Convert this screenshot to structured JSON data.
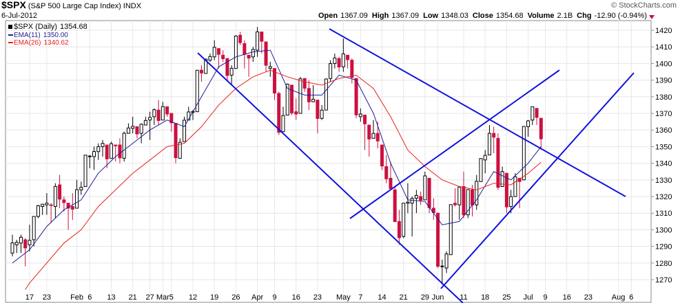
{
  "chart_data": {
    "type": "candlestick",
    "title": "$SPX",
    "subtitle": "(S&P 500 Large Cap Index) INDX",
    "date": "6-Jul-2012",
    "credit": "© StockCharts.com",
    "quote": [
      {
        "label": "Open",
        "value": 1367.09
      },
      {
        "label": "High",
        "value": 1367.09
      },
      {
        "label": "Low",
        "value": 1348.03
      },
      {
        "label": "Close",
        "value": 1354.68
      },
      {
        "label": "Volume",
        "value": "2.1B"
      },
      {
        "label": "Chg",
        "value": "-12.90 (-0.94%)"
      }
    ],
    "name": "$SPX (Daily)",
    "last_label": "1354.68",
    "up_color": "#000000",
    "down_color": "#cc1040",
    "x": [
      0,
      1,
      2,
      3,
      4,
      5,
      6,
      7,
      8,
      9,
      10,
      11,
      12,
      13,
      14,
      15,
      16,
      17,
      18,
      19,
      20,
      21,
      22,
      23,
      24,
      25,
      26,
      27,
      28,
      29,
      30,
      31,
      32,
      33,
      34,
      35,
      36,
      37,
      38,
      39,
      40,
      41,
      42,
      43,
      44,
      45,
      46,
      47,
      48,
      49,
      50,
      51,
      52,
      53,
      54,
      55,
      56,
      57,
      58,
      59,
      60,
      61,
      62,
      63,
      64,
      65,
      66,
      67,
      68,
      69,
      70,
      71,
      72,
      73,
      74,
      75,
      76,
      77,
      78,
      79,
      80,
      81,
      82,
      83,
      84,
      85,
      86,
      87,
      88,
      89,
      90,
      91,
      92,
      93,
      94,
      95,
      96,
      97,
      98,
      99,
      100,
      101,
      102,
      103,
      104,
      105,
      106,
      107,
      108,
      109,
      110,
      111,
      112,
      113,
      114,
      115,
      116,
      117,
      118,
      119,
      120,
      121,
      122,
      123
    ],
    "open": [
      1286,
      1291,
      1292,
      1294,
      1291,
      1294,
      1308,
      1314,
      1315,
      1315,
      1314,
      1327,
      1318,
      1316,
      1314,
      1313,
      1324,
      1326,
      1344,
      1344,
      1347,
      1350,
      1351,
      1343,
      1351,
      1351,
      1343,
      1358,
      1361,
      1362,
      1358,
      1363,
      1366,
      1368,
      1372,
      1366,
      1374,
      1370,
      1364,
      1343,
      1353,
      1366,
      1371,
      1371,
      1396,
      1394,
      1402,
      1404,
      1409,
      1405,
      1403,
      1393,
      1397,
      1417,
      1412,
      1405,
      1404,
      1408,
      1419,
      1413,
      1397,
      1397,
      1382,
      1359,
      1369,
      1387,
      1371,
      1370,
      1391,
      1385,
      1377,
      1378,
      1367,
      1372,
      1391,
      1400,
      1403,
      1398,
      1405,
      1402,
      1391,
      1368,
      1369,
      1363,
      1355,
      1358,
      1351,
      1338,
      1331,
      1324,
      1305,
      1296,
      1316,
      1316,
      1319,
      1320,
      1318,
      1331,
      1313,
      1310,
      1278,
      1277,
      1285,
      1316,
      1315,
      1326,
      1309,
      1324,
      1315,
      1329,
      1342,
      1345,
      1358,
      1355,
      1326,
      1334,
      1314,
      1320,
      1331,
      1330,
      1362,
      1366,
      1373,
      1367.09
    ],
    "high": [
      1297,
      1294,
      1297,
      1295,
      1303,
      1308,
      1315,
      1315,
      1322,
      1316,
      1328,
      1333,
      1320,
      1316,
      1322,
      1330,
      1329,
      1345,
      1345,
      1350,
      1352,
      1354,
      1351,
      1353,
      1351,
      1355,
      1359,
      1364,
      1368,
      1362,
      1364,
      1368,
      1371,
      1373,
      1378,
      1377,
      1374,
      1370,
      1364,
      1355,
      1368,
      1374,
      1372,
      1396,
      1399,
      1403,
      1406,
      1414,
      1409,
      1408,
      1403,
      1399,
      1417,
      1419,
      1414,
      1405,
      1410,
      1422,
      1419,
      1413,
      1401,
      1397,
      1383,
      1374,
      1388,
      1387,
      1379,
      1392,
      1391,
      1390,
      1387,
      1378,
      1375,
      1391,
      1402,
      1406,
      1404,
      1415,
      1405,
      1403,
      1391,
      1373,
      1369,
      1363,
      1366,
      1365,
      1351,
      1345,
      1341,
      1326,
      1312,
      1316,
      1328,
      1320,
      1324,
      1323,
      1335,
      1331,
      1319,
      1310,
      1282,
      1287,
      1315,
      1325,
      1326,
      1335,
      1324,
      1327,
      1333,
      1343,
      1348,
      1363,
      1362,
      1358,
      1338,
      1334,
      1324,
      1334,
      1331,
      1362,
      1366,
      1374,
      1373,
      1367.09
    ],
    "low": [
      1284,
      1286,
      1286,
      1278,
      1287,
      1290,
      1307,
      1309,
      1309,
      1304,
      1307,
      1313,
      1311,
      1300,
      1306,
      1313,
      1321,
      1326,
      1337,
      1336,
      1342,
      1344,
      1337,
      1343,
      1341,
      1340,
      1341,
      1358,
      1358,
      1355,
      1352,
      1363,
      1354,
      1363,
      1363,
      1366,
      1368,
      1359,
      1340,
      1343,
      1353,
      1366,
      1366,
      1371,
      1389,
      1394,
      1401,
      1402,
      1397,
      1401,
      1389,
      1387,
      1397,
      1411,
      1397,
      1392,
      1401,
      1404,
      1406,
      1395,
      1392,
      1378,
      1357,
      1359,
      1369,
      1369,
      1366,
      1370,
      1383,
      1372,
      1377,
      1358,
      1366,
      1372,
      1389,
      1397,
      1395,
      1395,
      1397,
      1388,
      1367,
      1365,
      1348,
      1344,
      1355,
      1349,
      1336,
      1328,
      1324,
      1305,
      1291,
      1295,
      1310,
      1296,
      1310,
      1315,
      1318,
      1310,
      1306,
      1277,
      1267,
      1274,
      1285,
      1314,
      1306,
      1307,
      1307,
      1308,
      1312,
      1329,
      1334,
      1345,
      1346,
      1324,
      1326,
      1310,
      1310,
      1320,
      1313,
      1330,
      1356,
      1363,
      1363,
      1348.03
    ],
    "close": [
      1292.08,
      1292.48,
      1295.5,
      1289.09,
      1293.67,
      1308.04,
      1314.5,
      1315.38,
      1316,
      1314.65,
      1326.06,
      1318.43,
      1316.33,
      1313.01,
      1312.41,
      1324.09,
      1325.54,
      1344.9,
      1344.33,
      1347.05,
      1349.96,
      1351.95,
      1342.64,
      1351.77,
      1350.5,
      1343.23,
      1358.04,
      1361.23,
      1362.21,
      1357.66,
      1363.46,
      1365.74,
      1367.59,
      1372.18,
      1365.68,
      1374.09,
      1369.63,
      1364.33,
      1343.36,
      1352.63,
      1365.91,
      1370.87,
      1371.09,
      1395.95,
      1394.28,
      1402.6,
      1404.17,
      1409.75,
      1405.52,
      1402.89,
      1392.78,
      1397.11,
      1416.51,
      1412.52,
      1405.54,
      1403.28,
      1408.47,
      1419.04,
      1413.38,
      1398.96,
      1398.08,
      1382.2,
      1358.59,
      1368.71,
      1387.57,
      1370.26,
      1369.57,
      1390.78,
      1385.14,
      1376.92,
      1378.53,
      1366.94,
      1371.97,
      1390.69,
      1399.98,
      1403.36,
      1397.91,
      1405.82,
      1402.31,
      1391.57,
      1369.1,
      1369.58,
      1363.72,
      1354.58,
      1357.99,
      1353.39,
      1338.35,
      1330.66,
      1324.8,
      1304.86,
      1295.22,
      1315.99,
      1316.63,
      1318.86,
      1320.68,
      1317.82,
      1332.42,
      1313.32,
      1310.33,
      1278.04,
      1278.18,
      1285.5,
      1315.13,
      1314.99,
      1325.66,
      1308.93,
      1324.18,
      1314.88,
      1329.1,
      1342.84,
      1344.78,
      1357.98,
      1355.69,
      1325.51,
      1335.02,
      1313.72,
      1319.99,
      1331.85,
      1329.04,
      1362.16,
      1365.51,
      1374.02,
      1367.58,
      1354.68
    ],
    "lines": [
      {
        "name": "EMA(11)",
        "last_label": "1350.00",
        "color": "#1c1c96",
        "x": [
          0,
          4,
          8,
          12,
          16,
          20,
          24,
          28,
          32,
          36,
          40,
          44,
          48,
          52,
          56,
          60,
          64,
          68,
          72,
          76,
          80,
          84,
          88,
          92,
          96,
          100,
          104,
          108,
          112,
          116,
          120,
          123
        ],
        "values": [
          1280,
          1288,
          1302,
          1312,
          1318,
          1334,
          1344,
          1352,
          1360,
          1366,
          1362,
          1380,
          1398,
          1404,
          1407,
          1408,
          1385,
          1381,
          1381,
          1393,
          1390,
          1370,
          1340,
          1318,
          1317,
          1303,
          1305,
          1318,
          1335,
          1330,
          1340,
          1350
        ]
      },
      {
        "name": "EMA(26)",
        "last_label": "1340.62",
        "color": "#e8201c",
        "x": [
          3,
          4,
          8,
          12,
          16,
          20,
          24,
          28,
          32,
          36,
          40,
          44,
          48,
          52,
          56,
          60,
          64,
          68,
          72,
          76,
          80,
          84,
          88,
          92,
          96,
          100,
          104,
          108,
          112,
          116,
          120,
          123
        ],
        "values": [
          1264,
          1268,
          1280,
          1292,
          1300,
          1314,
          1324,
          1334,
          1342,
          1350,
          1352,
          1362,
          1375,
          1385,
          1392,
          1396,
          1392,
          1389,
          1387,
          1391,
          1393,
          1385,
          1368,
          1348,
          1338,
          1330,
          1326,
          1324,
          1328,
          1327,
          1334,
          1340.62
        ]
      }
    ],
    "xlim": [
      -1.6,
      148.6
    ],
    "xticks": [
      {
        "value": 4,
        "label": "17"
      },
      {
        "value": 8,
        "label": "23"
      },
      {
        "value": 15,
        "label": "Feb"
      },
      {
        "value": 18,
        "label": "6"
      },
      {
        "value": 23,
        "label": "13"
      },
      {
        "value": 28,
        "label": "21"
      },
      {
        "value": 32,
        "label": "27"
      },
      {
        "value": 35,
        "label": "Mar"
      },
      {
        "value": 37,
        "label": "5"
      },
      {
        "value": 42,
        "label": "12"
      },
      {
        "value": 47,
        "label": "19"
      },
      {
        "value": 52,
        "label": "26"
      },
      {
        "value": 57,
        "label": "Apr"
      },
      {
        "value": 61,
        "label": "9"
      },
      {
        "value": 66,
        "label": "16"
      },
      {
        "value": 71,
        "label": "23"
      },
      {
        "value": 77,
        "label": "May"
      },
      {
        "value": 81,
        "label": "7"
      },
      {
        "value": 86,
        "label": "14"
      },
      {
        "value": 91,
        "label": "21"
      },
      {
        "value": 96,
        "label": "29"
      },
      {
        "value": 99,
        "label": "Jun"
      },
      {
        "value": 105,
        "label": "11"
      },
      {
        "value": 110,
        "label": "18"
      },
      {
        "value": 115,
        "label": "25"
      },
      {
        "value": 120,
        "label": "Jul"
      },
      {
        "value": 124,
        "label": "9"
      },
      {
        "value": 129,
        "label": "16"
      },
      {
        "value": 134,
        "label": "23"
      },
      {
        "value": 141,
        "label": "Aug"
      },
      {
        "value": 144,
        "label": "6"
      }
    ],
    "ylim": [
      1263.4,
      1425.8
    ],
    "yticks": [
      1270,
      1280,
      1290,
      1300,
      1310,
      1320,
      1330,
      1340,
      1350,
      1360,
      1370,
      1380,
      1390,
      1400,
      1410,
      1420
    ],
    "grid": true
  }
}
